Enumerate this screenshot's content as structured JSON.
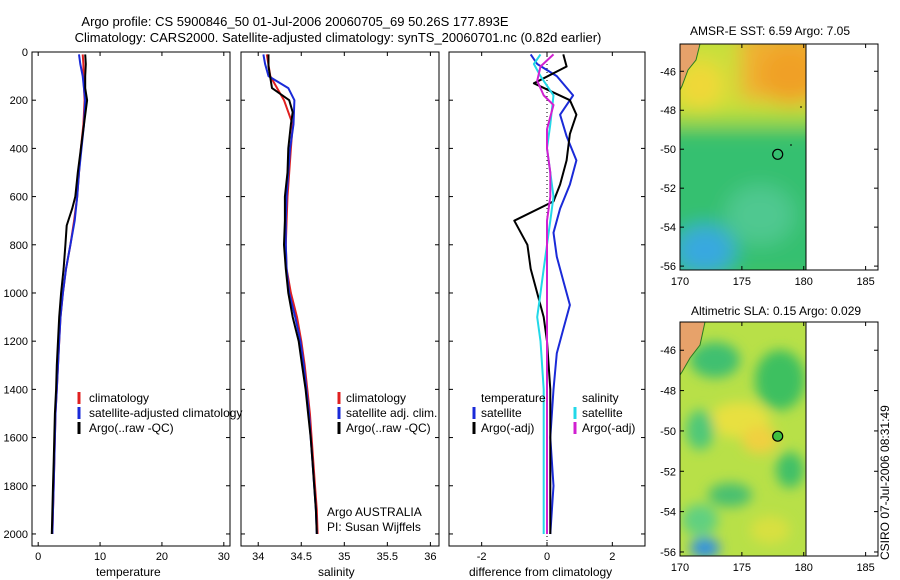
{
  "figure": {
    "title_line1": "Argo profile: CS 5900846_50 01-Jul-2006 20060705_69 50.26S 177.893E",
    "title_line2": "Climatology: CARS2000. Satellite-adjusted climatology: synTS_20060701.nc (0.82d earlier)",
    "credit": "CSIRO 07-Jul-2006 08:31:49",
    "float_info_1": "Argo AUSTRALIA",
    "float_info_2": "PI: Susan Wijffels"
  },
  "colors": {
    "climatology": "#e02020",
    "satellite": "#1a2ad8",
    "argo": "#000000",
    "sal_diff": "#22d8e8",
    "sal_argo": "#d020d0"
  },
  "chart_data": [
    {
      "id": "temperature",
      "type": "line",
      "xlabel": "temperature",
      "ylabel": "",
      "xlim": [
        -1,
        31
      ],
      "ylim": [
        2050,
        0
      ],
      "xticks": [
        0,
        10,
        20,
        30
      ],
      "yticks": [
        0,
        200,
        400,
        600,
        800,
        1000,
        1200,
        1400,
        1600,
        1800,
        2000
      ],
      "legend": [
        "climatology",
        "satellite-adjusted climatology",
        "Argo(..raw -QC)"
      ],
      "series": [
        {
          "name": "climatology",
          "color_key": "climatology",
          "points": [
            [
              7.2,
              10
            ],
            [
              7.3,
              50
            ],
            [
              7.3,
              100
            ],
            [
              7.5,
              200
            ],
            [
              7.3,
              300
            ],
            [
              6.9,
              400
            ],
            [
              6.6,
              500
            ],
            [
              6.3,
              600
            ],
            [
              5.8,
              700
            ],
            [
              5.2,
              800
            ],
            [
              4.5,
              900
            ],
            [
              4.0,
              1000
            ],
            [
              3.6,
              1100
            ],
            [
              3.4,
              1200
            ],
            [
              3.2,
              1300
            ],
            [
              3.0,
              1400
            ],
            [
              2.8,
              1500
            ],
            [
              2.7,
              1600
            ],
            [
              2.6,
              1700
            ],
            [
              2.5,
              1800
            ],
            [
              2.4,
              1900
            ],
            [
              2.3,
              2000
            ]
          ]
        },
        {
          "name": "satellite-adjusted climatology",
          "color_key": "satellite",
          "points": [
            [
              6.6,
              10
            ],
            [
              6.8,
              50
            ],
            [
              7.2,
              100
            ],
            [
              7.6,
              200
            ],
            [
              7.4,
              300
            ],
            [
              7.0,
              400
            ],
            [
              6.6,
              500
            ],
            [
              6.3,
              600
            ],
            [
              5.9,
              700
            ],
            [
              5.2,
              800
            ],
            [
              4.5,
              900
            ],
            [
              4.0,
              1000
            ],
            [
              3.6,
              1100
            ],
            [
              3.4,
              1200
            ],
            [
              3.2,
              1300
            ],
            [
              3.0,
              1400
            ],
            [
              2.8,
              1500
            ],
            [
              2.7,
              1600
            ],
            [
              2.6,
              1700
            ],
            [
              2.5,
              1800
            ],
            [
              2.4,
              1900
            ],
            [
              2.3,
              2000
            ]
          ]
        },
        {
          "name": "Argo(..raw -QC)",
          "color_key": "argo",
          "points": [
            [
              7.6,
              10
            ],
            [
              7.7,
              50
            ],
            [
              7.6,
              100
            ],
            [
              7.6,
              150
            ],
            [
              7.9,
              200
            ],
            [
              7.4,
              300
            ],
            [
              6.9,
              400
            ],
            [
              6.4,
              500
            ],
            [
              6.0,
              600
            ],
            [
              5.5,
              650
            ],
            [
              4.6,
              720
            ],
            [
              4.4,
              800
            ],
            [
              4.1,
              900
            ],
            [
              3.7,
              1000
            ],
            [
              3.4,
              1100
            ],
            [
              3.2,
              1200
            ],
            [
              3.0,
              1300
            ],
            [
              2.9,
              1400
            ],
            [
              2.7,
              1500
            ],
            [
              2.6,
              1600
            ],
            [
              2.5,
              1700
            ],
            [
              2.4,
              1800
            ],
            [
              2.3,
              1900
            ],
            [
              2.2,
              2000
            ]
          ]
        }
      ]
    },
    {
      "id": "salinity",
      "type": "line",
      "xlabel": "salinity",
      "ylabel": "",
      "xlim": [
        33.8,
        36.1
      ],
      "ylim": [
        2050,
        0
      ],
      "xticks": [
        34,
        34.5,
        35,
        35.5,
        36
      ],
      "yticks": [
        0,
        200,
        400,
        600,
        800,
        1000,
        1200,
        1400,
        1600,
        1800,
        2000
      ],
      "legend": [
        "climatology",
        "satellite adj. clim.",
        "Argo(..raw -QC)"
      ],
      "series": [
        {
          "name": "climatology",
          "color_key": "climatology",
          "points": [
            [
              34.1,
              10
            ],
            [
              34.14,
              100
            ],
            [
              34.3,
              200
            ],
            [
              34.4,
              300
            ],
            [
              34.38,
              400
            ],
            [
              34.36,
              500
            ],
            [
              34.34,
              600
            ],
            [
              34.33,
              700
            ],
            [
              34.32,
              800
            ],
            [
              34.33,
              900
            ],
            [
              34.38,
              1000
            ],
            [
              34.45,
              1100
            ],
            [
              34.5,
              1200
            ],
            [
              34.54,
              1300
            ],
            [
              34.57,
              1400
            ],
            [
              34.6,
              1500
            ],
            [
              34.62,
              1600
            ],
            [
              34.64,
              1700
            ],
            [
              34.66,
              1800
            ],
            [
              34.68,
              1900
            ],
            [
              34.69,
              2000
            ]
          ]
        },
        {
          "name": "satellite adj. clim.",
          "color_key": "satellite",
          "points": [
            [
              34.06,
              10
            ],
            [
              34.08,
              50
            ],
            [
              34.12,
              100
            ],
            [
              34.35,
              150
            ],
            [
              34.42,
              200
            ],
            [
              34.41,
              300
            ],
            [
              34.37,
              400
            ],
            [
              34.35,
              500
            ],
            [
              34.33,
              600
            ],
            [
              34.32,
              700
            ],
            [
              34.32,
              800
            ],
            [
              34.33,
              900
            ],
            [
              34.36,
              1000
            ],
            [
              34.43,
              1100
            ],
            [
              34.49,
              1200
            ],
            [
              34.53,
              1300
            ],
            [
              34.56,
              1400
            ],
            [
              34.59,
              1500
            ],
            [
              34.61,
              1600
            ],
            [
              34.63,
              1700
            ],
            [
              34.65,
              1800
            ],
            [
              34.67,
              1900
            ],
            [
              34.68,
              2000
            ]
          ]
        },
        {
          "name": "Argo(..raw -QC)",
          "color_key": "argo",
          "points": [
            [
              34.12,
              10
            ],
            [
              34.12,
              60
            ],
            [
              34.16,
              150
            ],
            [
              34.36,
              200
            ],
            [
              34.4,
              250
            ],
            [
              34.38,
              300
            ],
            [
              34.35,
              400
            ],
            [
              34.34,
              500
            ],
            [
              34.31,
              600
            ],
            [
              34.31,
              700
            ],
            [
              34.3,
              800
            ],
            [
              34.32,
              900
            ],
            [
              34.35,
              1000
            ],
            [
              34.4,
              1100
            ],
            [
              34.47,
              1200
            ],
            [
              34.51,
              1300
            ],
            [
              34.55,
              1400
            ],
            [
              34.58,
              1500
            ],
            [
              34.61,
              1600
            ],
            [
              34.63,
              1700
            ],
            [
              34.65,
              1800
            ],
            [
              34.67,
              1900
            ],
            [
              34.68,
              2000
            ]
          ]
        }
      ]
    },
    {
      "id": "difference",
      "type": "line",
      "xlabel": "difference from climatology",
      "ylabel": "",
      "xlim": [
        -3,
        3
      ],
      "ylim": [
        2050,
        0
      ],
      "xticks": [
        -2,
        0,
        2
      ],
      "yticks": [
        0,
        200,
        400,
        600,
        800,
        1000,
        1200,
        1400,
        1600,
        1800,
        2000
      ],
      "legend_header_1": "temperature",
      "legend_header_2": "salinity",
      "legend": [
        "satellite",
        "Argo(-adj)",
        "satellite",
        "Argo(-adj)"
      ],
      "series": [
        {
          "name": "temperature satellite",
          "color_key": "satellite",
          "points": [
            [
              -0.5,
              10
            ],
            [
              -0.3,
              50
            ],
            [
              0.3,
              100
            ],
            [
              0.8,
              180
            ],
            [
              0.4,
              260
            ],
            [
              0.6,
              350
            ],
            [
              0.9,
              450
            ],
            [
              0.7,
              550
            ],
            [
              0.4,
              650
            ],
            [
              0.2,
              750
            ],
            [
              0.3,
              850
            ],
            [
              0.5,
              950
            ],
            [
              0.7,
              1050
            ],
            [
              0.5,
              1150
            ],
            [
              0.3,
              1250
            ],
            [
              0.2,
              1400
            ],
            [
              0.1,
              1600
            ],
            [
              0.2,
              1800
            ],
            [
              0.1,
              2000
            ]
          ]
        },
        {
          "name": "temperature Argo(-adj)",
          "color_key": "argo",
          "points": [
            [
              0.5,
              10
            ],
            [
              0.6,
              60
            ],
            [
              -0.4,
              130
            ],
            [
              0.7,
              200
            ],
            [
              0.9,
              260
            ],
            [
              0.7,
              340
            ],
            [
              0.6,
              450
            ],
            [
              0.4,
              550
            ],
            [
              0.2,
              620
            ],
            [
              -1.0,
              700
            ],
            [
              -0.6,
              800
            ],
            [
              -0.5,
              900
            ],
            [
              -0.3,
              1000
            ],
            [
              -0.1,
              1100
            ],
            [
              0.0,
              1200
            ],
            [
              0.1,
              1400
            ],
            [
              0.1,
              1600
            ],
            [
              0.1,
              1800
            ],
            [
              0.1,
              2000
            ]
          ]
        },
        {
          "name": "salinity satellite",
          "color_key": "sal_diff",
          "points": [
            [
              -0.2,
              10
            ],
            [
              -0.4,
              50
            ],
            [
              -0.2,
              100
            ],
            [
              0.2,
              180
            ],
            [
              0.1,
              300
            ],
            [
              0.0,
              400
            ],
            [
              0.1,
              500
            ],
            [
              0.2,
              600
            ],
            [
              0.1,
              700
            ],
            [
              0.0,
              800
            ],
            [
              -0.1,
              900
            ],
            [
              -0.2,
              1000
            ],
            [
              -0.3,
              1100
            ],
            [
              -0.2,
              1200
            ],
            [
              -0.1,
              1400
            ],
            [
              -0.1,
              1600
            ],
            [
              -0.1,
              1800
            ],
            [
              -0.1,
              2000
            ]
          ]
        },
        {
          "name": "salinity Argo(-adj)",
          "color_key": "sal_argo",
          "points": [
            [
              0.2,
              10
            ],
            [
              -0.2,
              60
            ],
            [
              -0.3,
              120
            ],
            [
              -0.1,
              180
            ],
            [
              0.2,
              220
            ],
            [
              0.0,
              320
            ],
            [
              0.0,
              400
            ],
            [
              0.1,
              500
            ],
            [
              0.1,
              600
            ],
            [
              0.0,
              700
            ],
            [
              0.0,
              800
            ],
            [
              0.0,
              900
            ],
            [
              0.0,
              1000
            ],
            [
              0.0,
              1100
            ],
            [
              0.0,
              1200
            ],
            [
              0.0,
              1400
            ],
            [
              0.0,
              1600
            ],
            [
              0.0,
              1800
            ],
            [
              0.0,
              2000
            ]
          ]
        }
      ]
    },
    {
      "id": "sst-map",
      "type": "heatmap",
      "title": "AMSR-E SST: 6.59  Argo: 7.05",
      "xlim": [
        170,
        186
      ],
      "ylim": [
        -56.2,
        -44.6
      ],
      "xticks": [
        170,
        175,
        180,
        185
      ],
      "yticks": [
        -46,
        -48,
        -50,
        -52,
        -54,
        -56
      ],
      "marker": {
        "lon": 177.893,
        "lat": -50.26
      }
    },
    {
      "id": "sla-map",
      "type": "heatmap",
      "title": "Altimetric SLA: 0.15  Argo: 0.029",
      "xlim": [
        170,
        186
      ],
      "ylim": [
        -56.2,
        -44.6
      ],
      "xticks": [
        170,
        175,
        180,
        185
      ],
      "yticks": [
        -46,
        -48,
        -50,
        -52,
        -54,
        -56
      ],
      "marker": {
        "lon": 177.893,
        "lat": -50.26
      }
    }
  ]
}
